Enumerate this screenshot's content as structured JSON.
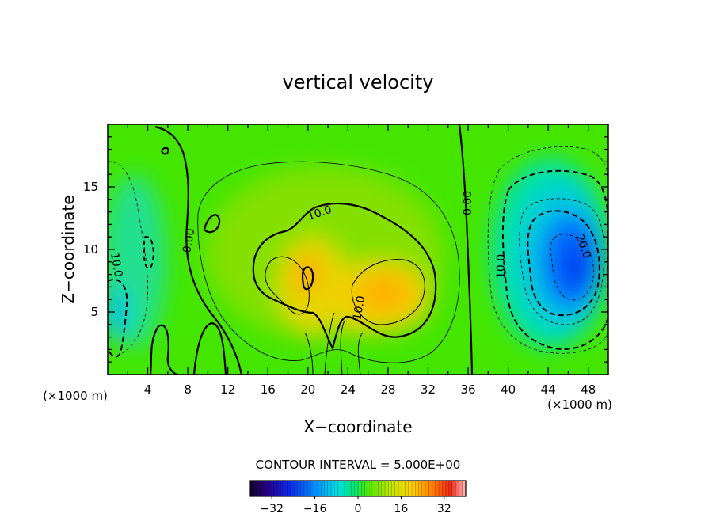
{
  "chart_data": {
    "type": "heatmap",
    "title": "vertical velocity",
    "xlabel": "X−coordinate",
    "ylabel": "Z−coordinate",
    "x_unit_label_left": "(×1000 m)",
    "x_unit_label_right": "(×1000 m)",
    "xlim": [
      0,
      50
    ],
    "ylim": [
      0,
      20
    ],
    "x_ticks": [
      4,
      8,
      12,
      16,
      20,
      24,
      28,
      32,
      36,
      40,
      44,
      48
    ],
    "x_tick_labels": [
      "4",
      "8",
      "12",
      "16",
      "20",
      "24",
      "28",
      "32",
      "36",
      "40",
      "44",
      "48"
    ],
    "y_ticks": [
      5,
      10,
      15
    ],
    "y_tick_labels": [
      "5",
      "10",
      "15"
    ],
    "contour_interval_label": "CONTOUR INTERVAL = 5.000E+00",
    "contour_interval": 5,
    "colorbar": {
      "min": -40,
      "max": 40,
      "ticks": [
        -32,
        -16,
        0,
        16,
        32
      ],
      "tick_labels": [
        "−32",
        "−16",
        "0",
        "16",
        "32"
      ]
    },
    "contour_labels": [
      {
        "text": "10.0",
        "x": 26.5,
        "z": 12.9
      },
      {
        "text": "0.00",
        "x": 36.0,
        "z": 14.2
      },
      {
        "text": "0.00",
        "x": 7.8,
        "z": 11.0
      },
      {
        "text": "10.0",
        "x": 25.0,
        "z": 5.5
      },
      {
        "text": "10.0",
        "x": 39.5,
        "z": 8.5
      },
      {
        "text": "20.0",
        "x": 47.0,
        "z": 10.0
      },
      {
        "text": "10.0",
        "x": 0.8,
        "z": 8.5
      }
    ],
    "features": [
      {
        "kind": "updraft",
        "x": 20.0,
        "z": 7.5,
        "w": 14
      },
      {
        "kind": "updraft",
        "x": 28.0,
        "z": 6.0,
        "w": 15
      },
      {
        "kind": "downdraft",
        "x": 46.0,
        "z": 9.5,
        "w": -28
      },
      {
        "kind": "downdraft",
        "x": 0.5,
        "z": 5.0,
        "w": -12
      },
      {
        "kind": "downdraft",
        "x": 4.0,
        "z": 10.0,
        "w": -8
      }
    ]
  }
}
